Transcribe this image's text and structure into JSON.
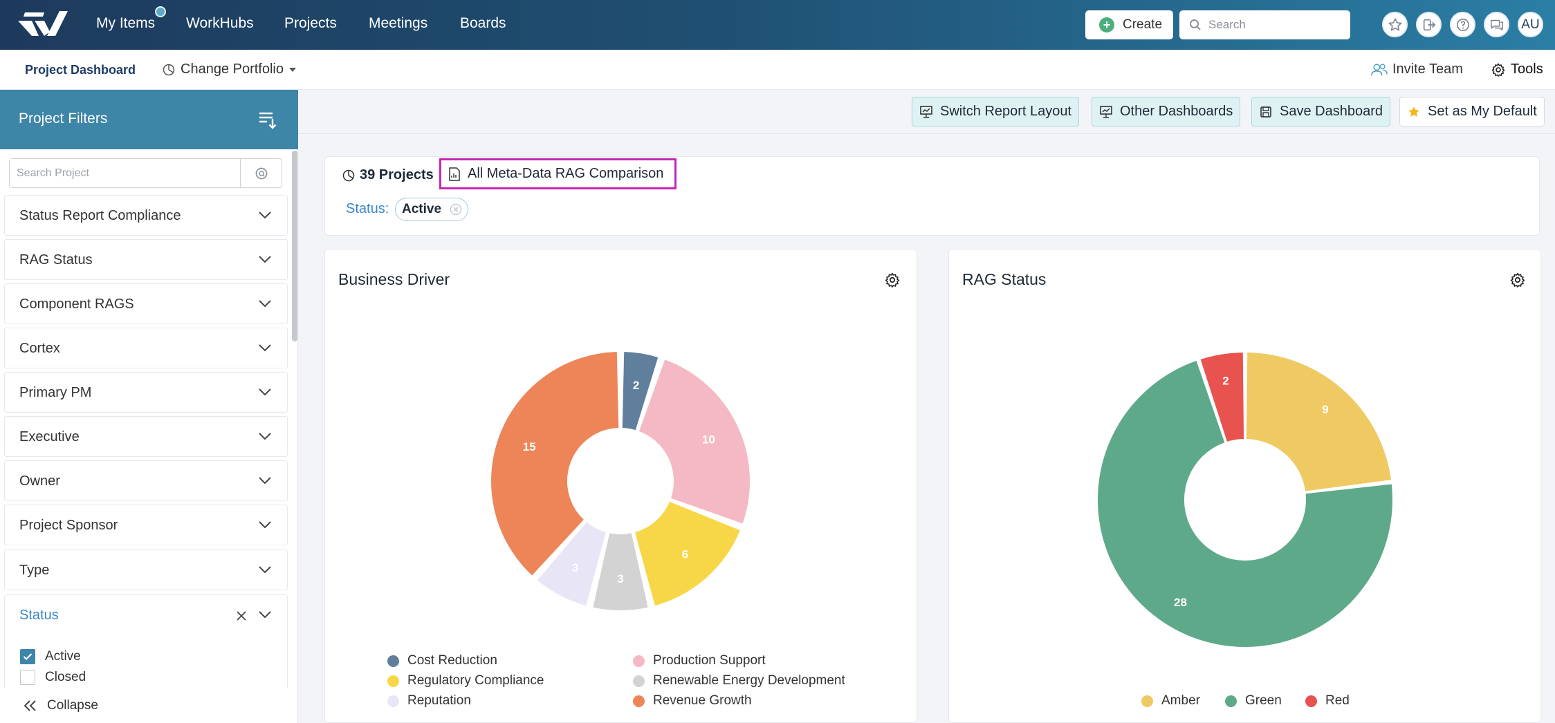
{
  "nav": {
    "items": [
      "My Items",
      "WorkHubs",
      "Projects",
      "Meetings",
      "Boards"
    ],
    "create_label": "Create",
    "search_placeholder": "Search",
    "avatar_initials": "AU"
  },
  "subbar": {
    "dashboard_label": "Project Dashboard",
    "portfolio_label": "Change Portfolio",
    "invite_label": "Invite Team",
    "tools_label": "Tools"
  },
  "sidebar": {
    "title": "Project Filters",
    "search_placeholder": "Search Project",
    "filters": [
      "Status Report Compliance",
      "RAG Status",
      "Component RAGS",
      "Cortex",
      "Primary PM",
      "Executive",
      "Owner",
      "Project Sponsor",
      "Type"
    ],
    "status_filter": {
      "label": "Status",
      "options": [
        {
          "label": "Active",
          "checked": true
        },
        {
          "label": "Closed",
          "checked": false
        }
      ]
    },
    "collapse_label": "Collapse"
  },
  "toolbar": {
    "switch_layout": "Switch Report Layout",
    "other_dashboards": "Other Dashboards",
    "save_dashboard": "Save Dashboard",
    "set_default": "Set as My Default"
  },
  "info": {
    "project_count": "39 Projects",
    "report_link": "All Meta-Data RAG Comparison",
    "status_label": "Status:",
    "status_chip": "Active"
  },
  "chart_data": [
    {
      "type": "pie",
      "title": "Business Driver",
      "categories": [
        "Cost Reduction",
        "Production Support",
        "Regulatory Compliance",
        "Renewable Energy Development",
        "Reputation",
        "Revenue Growth"
      ],
      "values": [
        2,
        10,
        6,
        3,
        3,
        15
      ],
      "colors": [
        "#5f7f9c",
        "#f4b9c4",
        "#f7d748",
        "#d3d3d3",
        "#e8e6f6",
        "#ee8558"
      ],
      "legend": "bottom"
    },
    {
      "type": "pie",
      "title": "RAG Status",
      "categories": [
        "Amber",
        "Green",
        "Red"
      ],
      "values": [
        9,
        28,
        2
      ],
      "colors": [
        "#efc962",
        "#5fa98b",
        "#e8534f"
      ],
      "legend": "bottom"
    }
  ]
}
